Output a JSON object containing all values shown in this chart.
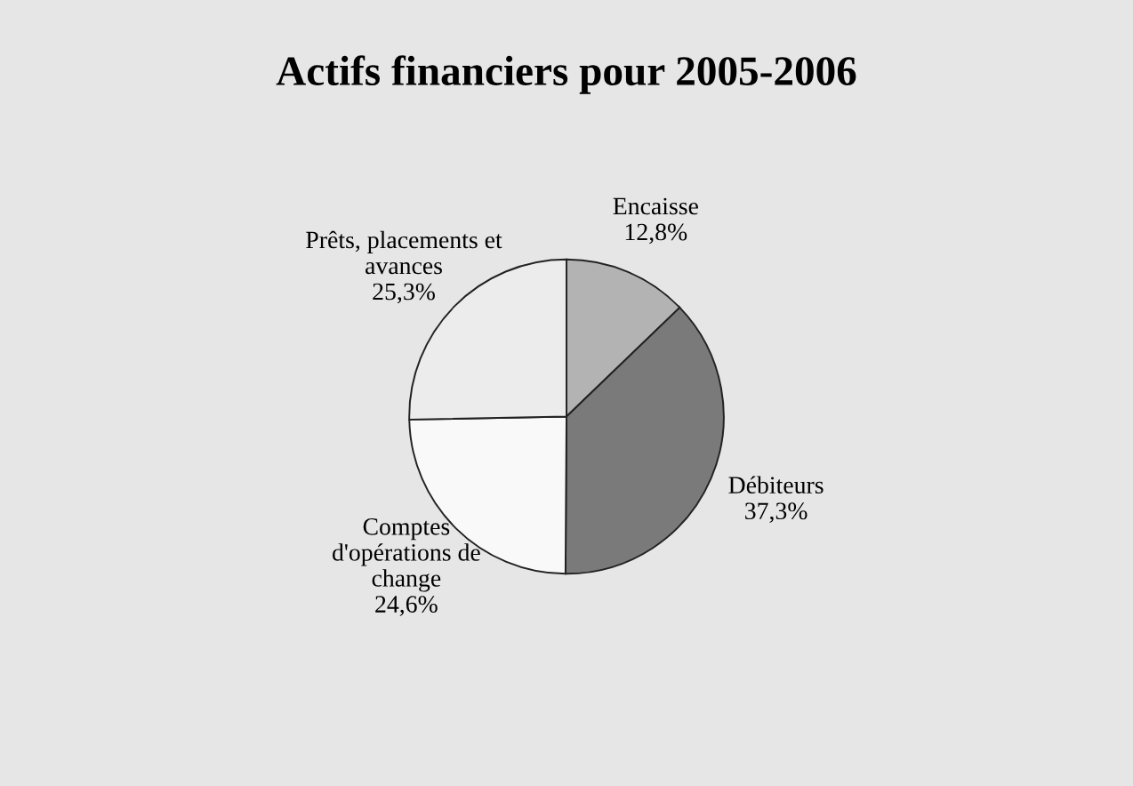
{
  "chart_data": {
    "type": "pie",
    "title": "Actifs financiers pour 2005-2006",
    "categories": [
      "Encaisse",
      "Débiteurs",
      "Comptes\nd'opérations de\nchange",
      "Prêts, placements et\navances"
    ],
    "values": [
      12.8,
      37.3,
      24.6,
      25.3
    ],
    "value_labels": [
      "12,8%",
      "37,3%",
      "24,6%",
      "25,3%"
    ],
    "colors": [
      "#b3b3b3",
      "#7a7a7a",
      "#f9f9f9",
      "#ececec"
    ],
    "legend": false
  }
}
